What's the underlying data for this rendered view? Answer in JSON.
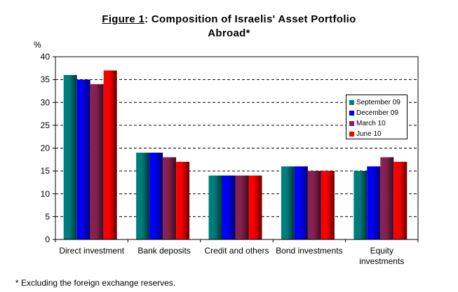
{
  "title": {
    "figure_label": "Figure 1",
    "text": ": Composition of Israelis' Asset Portfolio",
    "line2": "Abroad*"
  },
  "footnote": "* Excluding the foreign exchange reserves.",
  "chart_data": {
    "type": "bar",
    "title": "Figure 1: Composition of Israelis' Asset Portfolio Abroad*",
    "xlabel": "",
    "ylabel": "%",
    "ylim": [
      0,
      40
    ],
    "yticks": [
      0,
      5,
      10,
      15,
      20,
      25,
      30,
      35,
      40
    ],
    "grid": true,
    "legend_position": "right",
    "categories": [
      "Direct investment",
      "Bank deposits",
      "Credit and others",
      "Bond investments",
      "Equity investments"
    ],
    "category_lines": [
      [
        "Direct investment"
      ],
      [
        "Bank deposits"
      ],
      [
        "Credit and others"
      ],
      [
        "Bond investments"
      ],
      [
        "Equity",
        "investments"
      ]
    ],
    "series": [
      {
        "name": "September 09",
        "color": "#008080",
        "values": [
          36,
          19,
          14,
          16,
          15
        ]
      },
      {
        "name": "December 09",
        "color": "#0000FF",
        "values": [
          35,
          19,
          14,
          16,
          16
        ]
      },
      {
        "name": "March 10",
        "color": "#8B2252",
        "values": [
          34,
          18,
          14,
          15,
          18
        ]
      },
      {
        "name": "June 10",
        "color": "#FF0000",
        "values": [
          37,
          17,
          14,
          15,
          17
        ]
      }
    ]
  }
}
